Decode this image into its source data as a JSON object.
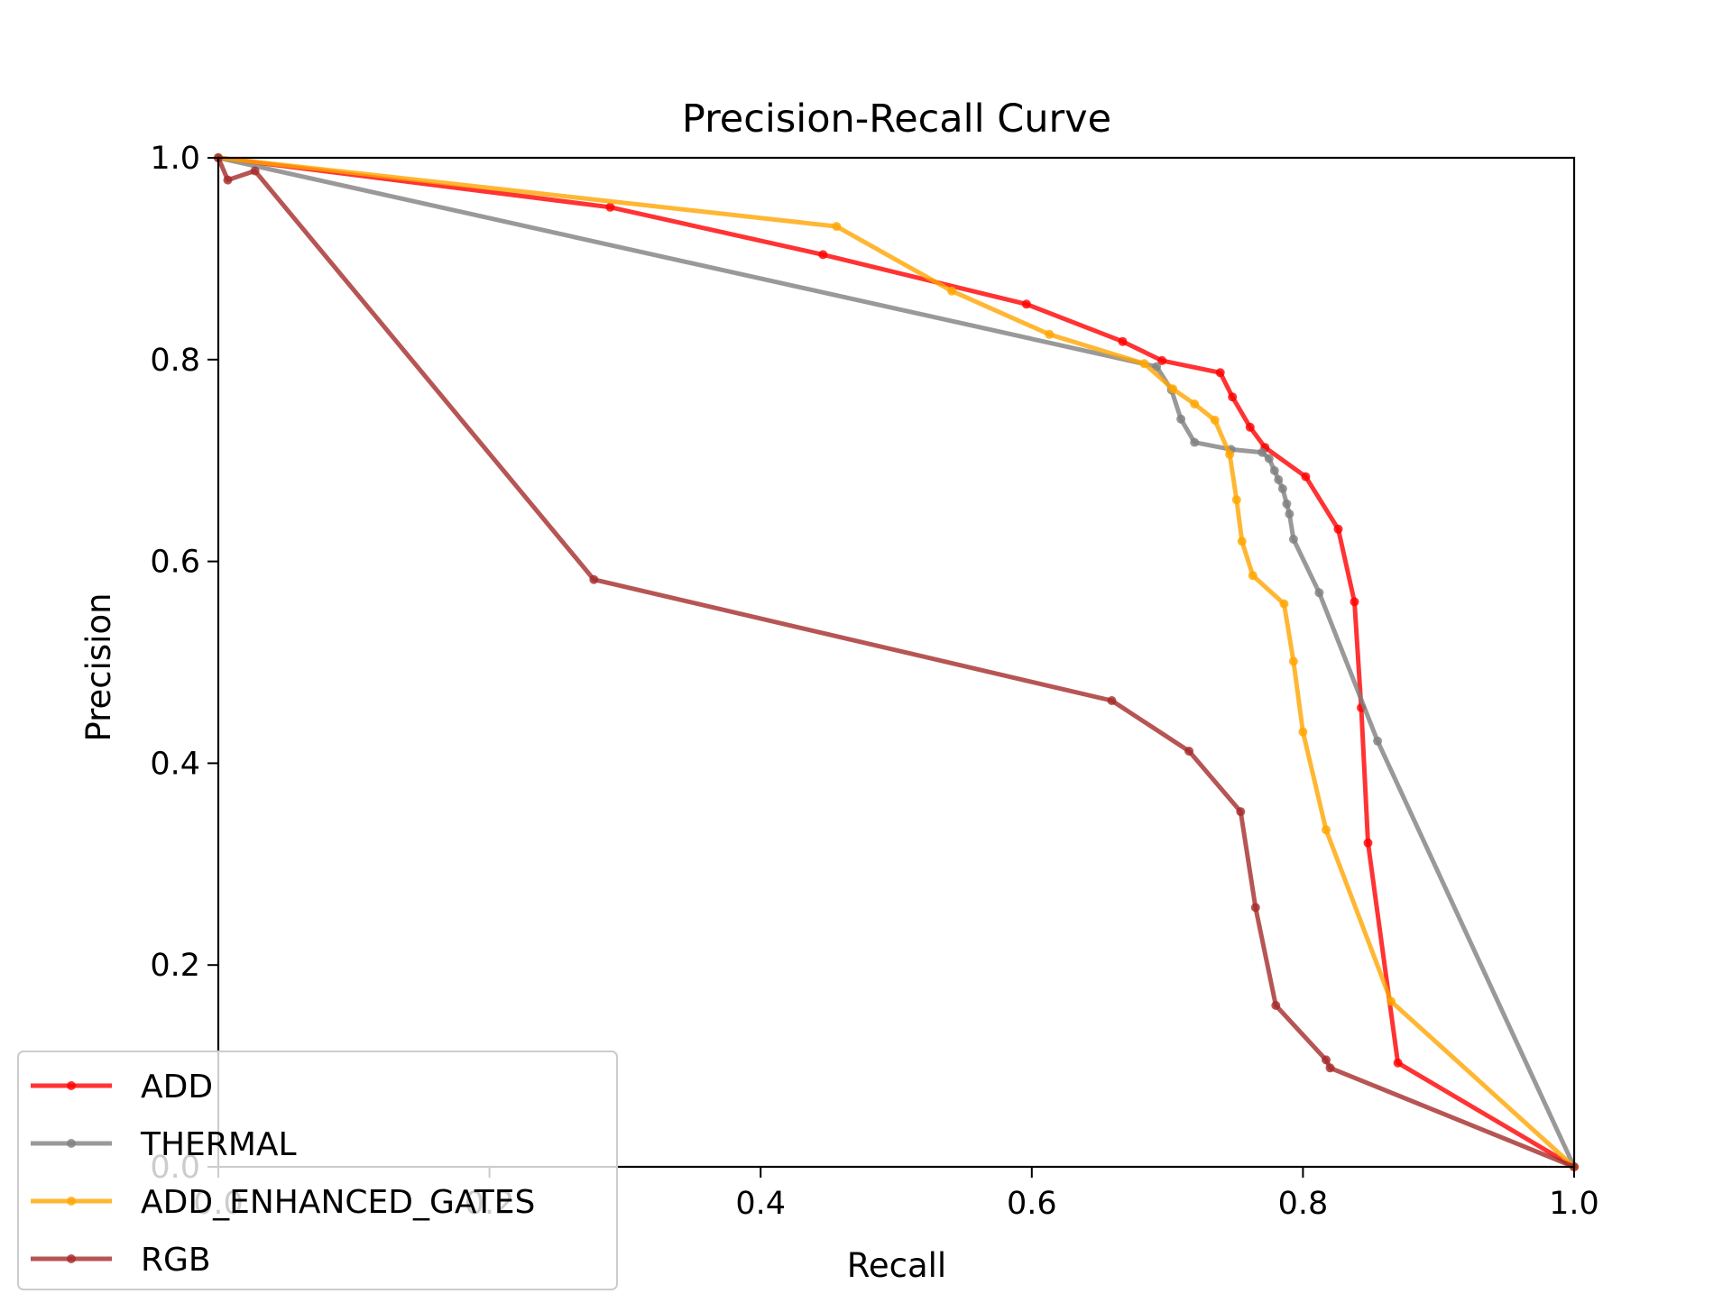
{
  "chart_data": {
    "type": "line",
    "title": "Precision-Recall Curve",
    "xlabel": "Recall",
    "ylabel": "Precision",
    "xlim": [
      0,
      1
    ],
    "ylim": [
      0,
      1
    ],
    "xticks": [
      0.0,
      0.2,
      0.4,
      0.6,
      0.8,
      1.0
    ],
    "yticks": [
      0.0,
      0.2,
      0.4,
      0.6,
      0.8,
      1.0
    ],
    "xtick_labels": [
      "0.0",
      "0.2",
      "0.4",
      "0.6",
      "0.8",
      "1.0"
    ],
    "ytick_labels": [
      "0.0",
      "0.2",
      "0.4",
      "0.6",
      "0.8",
      "1.0"
    ],
    "grid": false,
    "legend_position": "lower-left",
    "series": [
      {
        "name": "ADD",
        "color": "#ff0000",
        "x": [
          0.0,
          0.289,
          0.446,
          0.596,
          0.667,
          0.696,
          0.739,
          0.748,
          0.761,
          0.772,
          0.802,
          0.826,
          0.838,
          0.843,
          0.848,
          0.87,
          1.0
        ],
        "y": [
          1.0,
          0.951,
          0.904,
          0.855,
          0.818,
          0.799,
          0.787,
          0.763,
          0.733,
          0.713,
          0.684,
          0.632,
          0.56,
          0.455,
          0.321,
          0.103,
          0.0
        ]
      },
      {
        "name": "THERMAL",
        "color": "#808080",
        "x": [
          0.0,
          0.692,
          0.703,
          0.71,
          0.72,
          0.747,
          0.77,
          0.775,
          0.779,
          0.782,
          0.785,
          0.788,
          0.79,
          0.793,
          0.812,
          0.855,
          1.0
        ],
        "y": [
          1.0,
          0.793,
          0.77,
          0.741,
          0.718,
          0.711,
          0.708,
          0.702,
          0.69,
          0.681,
          0.672,
          0.657,
          0.647,
          0.622,
          0.569,
          0.422,
          0.0
        ]
      },
      {
        "name": "ADD_ENHANCED_GATES",
        "color": "#ffa500",
        "x": [
          0.0,
          0.456,
          0.541,
          0.613,
          0.683,
          0.704,
          0.72,
          0.735,
          0.746,
          0.751,
          0.755,
          0.763,
          0.786,
          0.793,
          0.8,
          0.817,
          0.865,
          1.0
        ],
        "y": [
          1.0,
          0.932,
          0.868,
          0.825,
          0.796,
          0.771,
          0.756,
          0.74,
          0.706,
          0.661,
          0.62,
          0.586,
          0.558,
          0.501,
          0.431,
          0.334,
          0.164,
          0.0
        ]
      },
      {
        "name": "RGB",
        "color": "#a52a2a",
        "x": [
          0.0,
          0.007,
          0.027,
          0.277,
          0.659,
          0.716,
          0.754,
          0.765,
          0.78,
          0.817,
          0.82,
          1.0
        ],
        "y": [
          1.0,
          0.978,
          0.987,
          0.582,
          0.462,
          0.412,
          0.352,
          0.257,
          0.16,
          0.106,
          0.098,
          0.0
        ]
      }
    ]
  }
}
